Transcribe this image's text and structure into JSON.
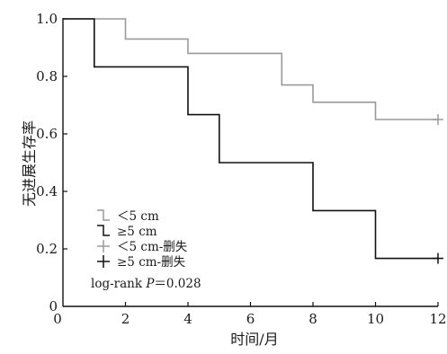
{
  "chart_data": {
    "type": "line",
    "subtype": "kaplan-meier-step",
    "xlabel": "时间/月",
    "ylabel": "无进展生存率",
    "xlim": [
      0,
      12
    ],
    "ylim": [
      0,
      1.0
    ],
    "x_ticks": [
      0,
      2,
      4,
      6,
      8,
      10,
      12
    ],
    "y_ticks": [
      0,
      0.2,
      0.4,
      0.6,
      0.8,
      1.0
    ],
    "x_tick_labels": [
      "0",
      "2",
      "4",
      "6",
      "8",
      "10",
      "12"
    ],
    "y_tick_labels": [
      "0",
      "0.2",
      "0.4",
      "0.6",
      "0.8",
      "1.0"
    ],
    "grid": false,
    "legend_position": "bottom-left",
    "series": [
      {
        "name": "<5 cm",
        "display": "＜5 cm",
        "color": "#9a9a9a",
        "x": [
          0,
          1,
          1,
          2,
          2,
          4,
          4,
          7,
          7,
          8,
          8,
          10,
          10,
          12
        ],
        "y": [
          1.0,
          1.0,
          1.0,
          1.0,
          0.93,
          0.93,
          0.88,
          0.88,
          0.77,
          0.77,
          0.71,
          0.71,
          0.65,
          0.65
        ],
        "censored": [
          {
            "x": 12,
            "y": 0.65
          }
        ]
      },
      {
        "name": "≥5 cm",
        "display": "≥5 cm",
        "color": "#111111",
        "x": [
          0,
          1,
          1,
          4,
          4,
          5,
          5,
          8,
          8,
          10,
          10,
          12
        ],
        "y": [
          1.0,
          1.0,
          0.833,
          0.833,
          0.667,
          0.667,
          0.5,
          0.5,
          0.333,
          0.333,
          0.167,
          0.167
        ],
        "censored": [
          {
            "x": 12,
            "y": 0.167
          }
        ]
      }
    ],
    "legend": [
      {
        "label": "＜5 cm",
        "symbol": "step",
        "color": "#9a9a9a"
      },
      {
        "label": "≥5 cm",
        "symbol": "step",
        "color": "#111111"
      },
      {
        "label": "＜5 cm-删失",
        "symbol": "plus",
        "color": "#9a9a9a"
      },
      {
        "label": "≥5 cm-删失",
        "symbol": "plus",
        "color": "#111111"
      }
    ],
    "annotation": "log-rank P＝0.028",
    "annotation_parts": {
      "prefix": "log-rank ",
      "italic": "P",
      "suffix": "＝0.028"
    }
  }
}
